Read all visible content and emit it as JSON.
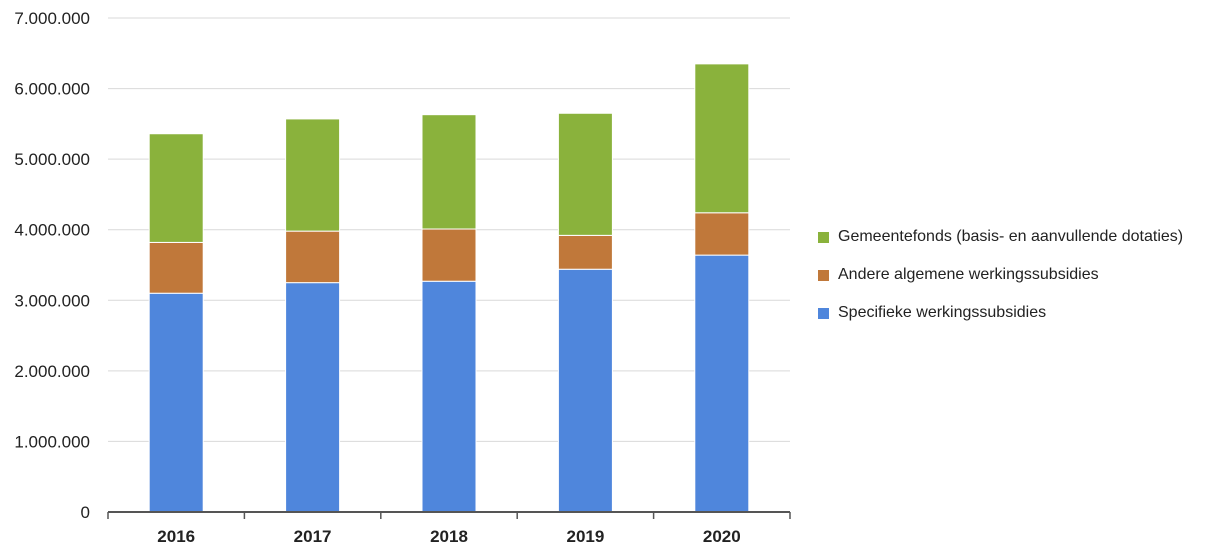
{
  "chart_data": {
    "type": "bar",
    "stacked": true,
    "categories": [
      "2016",
      "2017",
      "2018",
      "2019",
      "2020"
    ],
    "series": [
      {
        "name": "Specifieke werkingssubsidies",
        "color": "#4f86dc",
        "values": [
          3100000,
          3250000,
          3270000,
          3440000,
          3640000
        ]
      },
      {
        "name": "Andere algemene werkingssubsidies",
        "color": "#c0783a",
        "values": [
          720000,
          730000,
          740000,
          480000,
          600000
        ]
      },
      {
        "name": "Gemeentefonds (basis- en aanvullende dotaties)",
        "color": "#8ab23c",
        "values": [
          1540000,
          1590000,
          1620000,
          1730000,
          2110000
        ]
      }
    ],
    "y_ticks": [
      "0",
      "1.000.000",
      "2.000.000",
      "3.000.000",
      "4.000.000",
      "5.000.000",
      "6.000.000",
      "7.000.000"
    ],
    "ylim": [
      0,
      7000000
    ],
    "grid": true,
    "legend_position": "right",
    "legend_order": [
      2,
      1,
      0
    ]
  }
}
